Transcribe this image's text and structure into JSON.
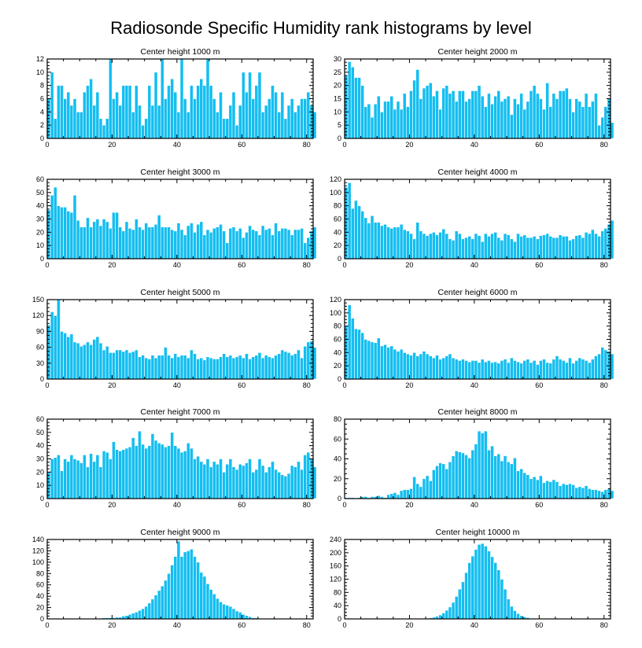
{
  "title": "Radiosonde Specific Humidity rank histograms by level",
  "colors": {
    "bar": "#14BEF0",
    "bar_edge": "#ffffff",
    "axis": "#000000"
  },
  "chart_data": [
    {
      "type": "bar",
      "title": "Center height 1000 m",
      "xlim": [
        0,
        82
      ],
      "ylim": [
        0,
        12
      ],
      "xticks": [
        0,
        20,
        40,
        60,
        80
      ],
      "yticks": [
        0,
        2,
        4,
        6,
        8,
        10,
        12
      ],
      "values": [
        6,
        10,
        3,
        8,
        8,
        6,
        7,
        5,
        6,
        4,
        4,
        7,
        8,
        9,
        5,
        7,
        3,
        2,
        3,
        12,
        6,
        7,
        5,
        8,
        8,
        8,
        4,
        8,
        5,
        2,
        3,
        8,
        5,
        10,
        5,
        12,
        6,
        8,
        9,
        7,
        4,
        12,
        6,
        4,
        8,
        6,
        8,
        9,
        8,
        12,
        8,
        6,
        4,
        7,
        3,
        3,
        5,
        7,
        2,
        5,
        10,
        7,
        10,
        6,
        8,
        10,
        4,
        5,
        6,
        8,
        7,
        4,
        7,
        3,
        5,
        6,
        4,
        5,
        6,
        6,
        7,
        5,
        4
      ]
    },
    {
      "type": "bar",
      "title": "Center height 2000 m",
      "xlim": [
        0,
        82
      ],
      "ylim": [
        0,
        30
      ],
      "xticks": [
        0,
        20,
        40,
        60,
        80
      ],
      "yticks": [
        0,
        5,
        10,
        15,
        20,
        25,
        30
      ],
      "values": [
        24,
        29,
        27,
        23,
        23,
        20,
        12,
        13,
        8,
        13,
        16,
        10,
        14,
        14,
        16,
        11,
        14,
        11,
        17,
        12,
        18,
        22,
        26,
        15,
        19,
        20,
        21,
        16,
        18,
        11,
        19,
        20,
        17,
        18,
        14,
        18,
        18,
        14,
        15,
        18,
        18,
        20,
        16,
        12,
        17,
        13,
        16,
        18,
        14,
        15,
        16,
        9,
        15,
        13,
        17,
        11,
        14,
        18,
        20,
        17,
        15,
        11,
        21,
        12,
        17,
        15,
        18,
        18,
        19,
        15,
        10,
        15,
        14,
        12,
        17,
        12,
        14,
        17,
        5,
        8,
        12,
        15,
        6
      ]
    },
    {
      "type": "bar",
      "title": "Center height 3000 m",
      "xlim": [
        0,
        82
      ],
      "ylim": [
        0,
        60
      ],
      "xticks": [
        0,
        20,
        40,
        60,
        80
      ],
      "yticks": [
        0,
        10,
        20,
        30,
        40,
        50,
        60
      ],
      "values": [
        37,
        48,
        54,
        40,
        39,
        39,
        36,
        35,
        48,
        29,
        24,
        24,
        31,
        24,
        28,
        30,
        25,
        30,
        28,
        23,
        35,
        35,
        24,
        21,
        28,
        23,
        22,
        30,
        24,
        22,
        27,
        24,
        24,
        26,
        33,
        24,
        24,
        24,
        22,
        21,
        27,
        22,
        18,
        25,
        27,
        20,
        26,
        28,
        18,
        22,
        20,
        23,
        24,
        26,
        21,
        12,
        23,
        24,
        21,
        23,
        16,
        20,
        25,
        22,
        21,
        18,
        25,
        22,
        23,
        18,
        27,
        21,
        23,
        23,
        22,
        18,
        22,
        22,
        23,
        12,
        16,
        21,
        24
      ]
    },
    {
      "type": "bar",
      "title": "Center height 4000 m",
      "xlim": [
        0,
        82
      ],
      "ylim": [
        0,
        120
      ],
      "xticks": [
        0,
        20,
        40,
        60,
        80
      ],
      "yticks": [
        0,
        20,
        40,
        60,
        80,
        100,
        120
      ],
      "values": [
        108,
        115,
        76,
        88,
        80,
        72,
        62,
        54,
        65,
        55,
        55,
        50,
        52,
        48,
        46,
        48,
        48,
        52,
        44,
        42,
        38,
        30,
        55,
        42,
        38,
        35,
        38,
        40,
        36,
        40,
        45,
        38,
        30,
        28,
        42,
        38,
        30,
        32,
        34,
        30,
        38,
        35,
        26,
        38,
        34,
        38,
        40,
        32,
        28,
        38,
        36,
        30,
        26,
        38,
        34,
        36,
        32,
        32,
        34,
        30,
        35,
        36,
        38,
        34,
        32,
        32,
        36,
        34,
        34,
        28,
        30,
        35,
        36,
        32,
        40,
        38,
        44,
        38,
        34,
        42,
        46,
        52,
        58
      ]
    },
    {
      "type": "bar",
      "title": "Center height 5000 m",
      "xlim": [
        0,
        82
      ],
      "ylim": [
        0,
        150
      ],
      "xticks": [
        0,
        20,
        40,
        60,
        80
      ],
      "yticks": [
        0,
        30,
        60,
        90,
        120,
        150
      ],
      "values": [
        102,
        127,
        120,
        150,
        90,
        87,
        80,
        85,
        70,
        68,
        62,
        65,
        70,
        65,
        75,
        80,
        68,
        55,
        62,
        50,
        50,
        55,
        55,
        52,
        55,
        50,
        52,
        55,
        42,
        45,
        40,
        38,
        45,
        40,
        45,
        45,
        60,
        45,
        40,
        48,
        42,
        45,
        45,
        40,
        55,
        48,
        38,
        40,
        36,
        42,
        40,
        38,
        38,
        42,
        48,
        42,
        45,
        40,
        42,
        45,
        40,
        48,
        38,
        42,
        45,
        50,
        40,
        45,
        42,
        40,
        45,
        48,
        55,
        52,
        50,
        45,
        48,
        55,
        40,
        62,
        70,
        72,
        60
      ]
    },
    {
      "type": "bar",
      "title": "Center height 6000 m",
      "xlim": [
        0,
        82
      ],
      "ylim": [
        0,
        120
      ],
      "xticks": [
        0,
        20,
        40,
        60,
        80
      ],
      "yticks": [
        0,
        20,
        40,
        60,
        80,
        100,
        120
      ],
      "values": [
        80,
        112,
        92,
        76,
        75,
        70,
        60,
        58,
        56,
        55,
        62,
        50,
        52,
        48,
        50,
        45,
        42,
        45,
        40,
        38,
        36,
        40,
        35,
        38,
        42,
        38,
        35,
        32,
        36,
        30,
        32,
        35,
        38,
        32,
        30,
        28,
        30,
        28,
        26,
        28,
        28,
        25,
        30,
        26,
        28,
        25,
        26,
        24,
        28,
        30,
        25,
        32,
        28,
        26,
        24,
        28,
        30,
        25,
        28,
        22,
        28,
        30,
        25,
        24,
        30,
        35,
        30,
        28,
        25,
        32,
        24,
        28,
        32,
        30,
        28,
        25,
        30,
        35,
        38,
        48,
        44,
        42,
        38
      ]
    },
    {
      "type": "bar",
      "title": "Center height 7000 m",
      "xlim": [
        0,
        82
      ],
      "ylim": [
        0,
        60
      ],
      "xticks": [
        0,
        20,
        40,
        60,
        80
      ],
      "yticks": [
        0,
        10,
        20,
        30,
        40,
        50,
        60
      ],
      "values": [
        20,
        30,
        31,
        33,
        21,
        30,
        28,
        33,
        30,
        29,
        27,
        33,
        24,
        34,
        28,
        33,
        24,
        36,
        35,
        30,
        43,
        37,
        36,
        37,
        38,
        39,
        46,
        40,
        51,
        41,
        38,
        40,
        49,
        44,
        42,
        41,
        39,
        40,
        50,
        40,
        38,
        35,
        36,
        42,
        38,
        30,
        32,
        28,
        26,
        30,
        24,
        28,
        26,
        30,
        20,
        26,
        30,
        24,
        22,
        26,
        25,
        27,
        30,
        20,
        22,
        30,
        25,
        20,
        24,
        28,
        22,
        20,
        18,
        17,
        19,
        25,
        24,
        28,
        22,
        33,
        35,
        30,
        24
      ]
    },
    {
      "type": "bar",
      "title": "Center height 8000 m",
      "xlim": [
        0,
        82
      ],
      "ylim": [
        0,
        80
      ],
      "xticks": [
        0,
        20,
        40,
        60,
        80
      ],
      "yticks": [
        0,
        20,
        40,
        60,
        80
      ],
      "values": [
        1,
        1,
        1,
        0,
        1,
        2,
        2,
        1,
        2,
        2,
        3,
        2,
        1,
        4,
        5,
        6,
        4,
        8,
        9,
        9,
        10,
        22,
        15,
        12,
        20,
        23,
        18,
        29,
        33,
        36,
        35,
        30,
        37,
        43,
        48,
        47,
        46,
        44,
        41,
        49,
        55,
        68,
        66,
        68,
        49,
        53,
        43,
        45,
        38,
        43,
        37,
        35,
        41,
        28,
        30,
        26,
        24,
        20,
        22,
        19,
        23,
        16,
        18,
        17,
        19,
        17,
        13,
        15,
        14,
        15,
        14,
        11,
        12,
        11,
        13,
        10,
        9,
        9,
        8,
        7,
        9,
        10,
        8
      ]
    },
    {
      "type": "bar",
      "title": "Center height 9000 m",
      "xlim": [
        0,
        82
      ],
      "ylim": [
        0,
        140
      ],
      "xticks": [
        0,
        20,
        40,
        60,
        80
      ],
      "yticks": [
        0,
        20,
        40,
        60,
        80,
        100,
        120,
        140
      ],
      "values": [
        0,
        0,
        0,
        0,
        0,
        0,
        0,
        0,
        0,
        0,
        0,
        0,
        0,
        0,
        0,
        1,
        1,
        2,
        2,
        2,
        2,
        3,
        3,
        5,
        6,
        8,
        10,
        12,
        15,
        18,
        22,
        28,
        35,
        42,
        50,
        58,
        68,
        80,
        95,
        110,
        137,
        110,
        118,
        120,
        123,
        110,
        100,
        82,
        75,
        62,
        52,
        44,
        36,
        30,
        26,
        24,
        22,
        18,
        14,
        12,
        8,
        6,
        4,
        2,
        2,
        1,
        1,
        1,
        1,
        0,
        0,
        0,
        0,
        0,
        0,
        0,
        0,
        0,
        0,
        0,
        0,
        0,
        0
      ]
    },
    {
      "type": "bar",
      "title": "Center height 10000 m",
      "xlim": [
        0,
        82
      ],
      "ylim": [
        0,
        240
      ],
      "xticks": [
        0,
        20,
        40,
        60,
        80
      ],
      "yticks": [
        0,
        40,
        80,
        120,
        160,
        200,
        240
      ],
      "values": [
        0,
        0,
        0,
        0,
        0,
        0,
        0,
        0,
        0,
        0,
        0,
        0,
        0,
        0,
        0,
        0,
        0,
        0,
        0,
        0,
        0,
        0,
        0,
        0,
        1,
        2,
        3,
        5,
        8,
        12,
        18,
        26,
        36,
        50,
        68,
        90,
        112,
        140,
        170,
        190,
        210,
        225,
        228,
        220,
        205,
        188,
        170,
        148,
        120,
        90,
        60,
        38,
        25,
        16,
        10,
        6,
        4,
        2,
        1,
        1,
        0,
        0,
        0,
        0,
        0,
        0,
        0,
        0,
        0,
        0,
        0,
        0,
        0,
        0,
        0,
        0,
        0,
        0,
        0,
        0,
        0,
        0,
        0
      ]
    }
  ]
}
